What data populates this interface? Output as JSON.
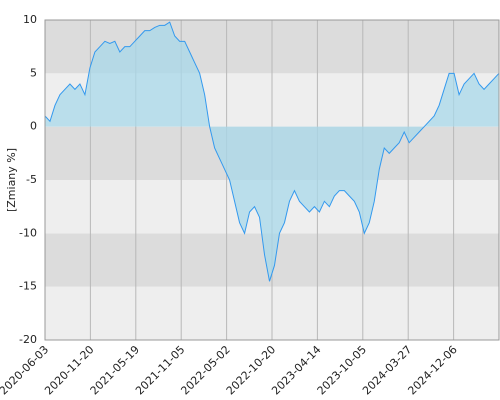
{
  "chart_data": {
    "type": "area",
    "y_label": "[Zmiany %]",
    "values": [
      1,
      0.5,
      2,
      3,
      3.5,
      4,
      3.5,
      4,
      3,
      5.5,
      7,
      7.5,
      8,
      7.8,
      8,
      7,
      7.5,
      7.5,
      8,
      8.5,
      9,
      9,
      9.3,
      9.5,
      9.5,
      9.8,
      8.5,
      8,
      8,
      7,
      6,
      5,
      3,
      0,
      -2,
      -3,
      -4,
      -5,
      -7,
      -9,
      -10,
      -8,
      -7.5,
      -8.5,
      -12,
      -14.5,
      -13,
      -10,
      -9,
      -7,
      -6,
      -7,
      -7.5,
      -8,
      -7.5,
      -8,
      -7,
      -7.5,
      -6.5,
      -6,
      -6,
      -6.5,
      -7,
      -8,
      -10,
      -9,
      -7,
      -4,
      -2,
      -2.5,
      -2,
      -1.5,
      -0.5,
      -1.5,
      -1,
      -0.5,
      0,
      0.5,
      1,
      2,
      3.5,
      5,
      5,
      3,
      4,
      4.5,
      5,
      4,
      3.5,
      4,
      4.5,
      5
    ],
    "color": "#3399ee",
    "fill": "#a8d8ea",
    "xlim": [
      0,
      91
    ],
    "xticks": [
      {
        "value": 0,
        "label": "2020-06-03"
      },
      {
        "value": 9.1,
        "label": "2020-11-20"
      },
      {
        "value": 18.2,
        "label": "2021-05-19"
      },
      {
        "value": 27.3,
        "label": "2021-11-05"
      },
      {
        "value": 36.4,
        "label": "2022-05-02"
      },
      {
        "value": 45.5,
        "label": "2022-10-20"
      },
      {
        "value": 54.6,
        "label": "2023-04-14"
      },
      {
        "value": 63.7,
        "label": "2023-10-05"
      },
      {
        "value": 72.8,
        "label": "2024-03-27"
      },
      {
        "value": 81.9,
        "label": "2024-12-06"
      }
    ],
    "ylim": [
      -20,
      10
    ],
    "yticks": [
      -20,
      -15,
      -10,
      -5,
      0,
      5,
      10
    ],
    "grid": true
  }
}
